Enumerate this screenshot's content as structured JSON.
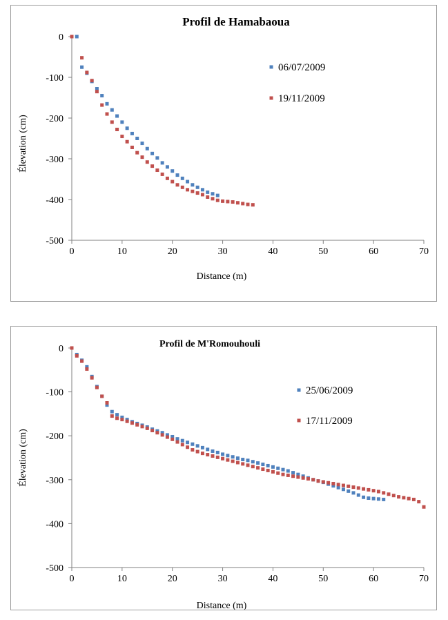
{
  "chart_data": [
    {
      "type": "scatter",
      "title": "Profil de Hamabaoua",
      "xlabel": "Distance (m)",
      "ylabel": "Élevation (cm)",
      "xlim": [
        0,
        70
      ],
      "ylim": [
        -500,
        0
      ],
      "xticks": [
        "0",
        "10",
        "20",
        "30",
        "40",
        "50",
        "60",
        "70"
      ],
      "yticks": [
        "0",
        "-100",
        "-200",
        "-300",
        "-400",
        "-500"
      ],
      "grid": false,
      "legend_position": "right",
      "series": [
        {
          "name": "06/07/2009",
          "color": "#4f81bd",
          "x": [
            1,
            2,
            3,
            4,
            5,
            6,
            7,
            8,
            9,
            10,
            11,
            12,
            13,
            14,
            15,
            16,
            17,
            18,
            19,
            20,
            21,
            22,
            23,
            24,
            25,
            26,
            27,
            28,
            29
          ],
          "y": [
            0,
            -75,
            -90,
            -110,
            -128,
            -145,
            -165,
            -180,
            -195,
            -210,
            -225,
            -238,
            -250,
            -262,
            -275,
            -287,
            -298,
            -310,
            -320,
            -330,
            -340,
            -348,
            -356,
            -364,
            -370,
            -376,
            -382,
            -386,
            -390
          ]
        },
        {
          "name": "19/11/2009",
          "color": "#c0504d",
          "x": [
            0,
            2,
            3,
            4,
            5,
            6,
            7,
            8,
            9,
            10,
            11,
            12,
            13,
            14,
            15,
            16,
            17,
            18,
            19,
            20,
            21,
            22,
            23,
            24,
            25,
            26,
            27,
            28,
            29,
            30,
            31,
            32,
            33,
            34,
            35,
            36
          ],
          "y": [
            0,
            -52,
            -88,
            -108,
            -135,
            -168,
            -190,
            -210,
            -228,
            -245,
            -258,
            -272,
            -285,
            -296,
            -308,
            -318,
            -328,
            -338,
            -348,
            -356,
            -364,
            -370,
            -376,
            -380,
            -384,
            -388,
            -394,
            -398,
            -402,
            -404,
            -405,
            -406,
            -408,
            -410,
            -412,
            -413
          ]
        }
      ]
    },
    {
      "type": "scatter",
      "title": "Profil de M'Romouhouli",
      "xlabel": "Distance (m)",
      "ylabel": "Élevation (cm)",
      "xlim": [
        0,
        70
      ],
      "ylim": [
        -500,
        0
      ],
      "xticks": [
        "0",
        "10",
        "20",
        "30",
        "40",
        "50",
        "60",
        "70"
      ],
      "yticks": [
        "0",
        "-100",
        "-200",
        "-300",
        "-400",
        "-500"
      ],
      "grid": false,
      "legend_position": "right",
      "series": [
        {
          "name": "25/06/2009",
          "color": "#4f81bd",
          "x": [
            0,
            1,
            2,
            3,
            4,
            5,
            6,
            7,
            8,
            9,
            10,
            11,
            12,
            13,
            14,
            15,
            16,
            17,
            18,
            19,
            20,
            21,
            22,
            23,
            24,
            25,
            26,
            27,
            28,
            29,
            30,
            31,
            32,
            33,
            34,
            35,
            36,
            37,
            38,
            39,
            40,
            41,
            42,
            43,
            44,
            45,
            46,
            47,
            48,
            49,
            50,
            51,
            52,
            53,
            54,
            55,
            56,
            57,
            58,
            59,
            60,
            61,
            62
          ],
          "y": [
            0,
            -15,
            -28,
            -43,
            -65,
            -88,
            -110,
            -130,
            -145,
            -152,
            -158,
            -163,
            -168,
            -172,
            -176,
            -180,
            -185,
            -189,
            -193,
            -198,
            -202,
            -207,
            -211,
            -215,
            -219,
            -223,
            -227,
            -231,
            -235,
            -238,
            -242,
            -245,
            -248,
            -251,
            -254,
            -256,
            -259,
            -262,
            -265,
            -268,
            -271,
            -274,
            -277,
            -280,
            -284,
            -288,
            -292,
            -296,
            -300,
            -303,
            -306,
            -310,
            -314,
            -318,
            -322,
            -326,
            -330,
            -335,
            -340,
            -342,
            -343,
            -344,
            -345
          ]
        },
        {
          "name": "17/11/2009",
          "color": "#c0504d",
          "x": [
            0,
            1,
            2,
            3,
            4,
            5,
            6,
            7,
            8,
            9,
            10,
            11,
            12,
            13,
            14,
            15,
            16,
            17,
            18,
            19,
            20,
            21,
            22,
            23,
            24,
            25,
            26,
            27,
            28,
            29,
            30,
            31,
            32,
            33,
            34,
            35,
            36,
            37,
            38,
            39,
            40,
            41,
            42,
            43,
            44,
            45,
            46,
            47,
            48,
            49,
            50,
            51,
            52,
            53,
            54,
            55,
            56,
            57,
            58,
            59,
            60,
            61,
            62,
            63,
            64,
            65,
            66,
            67,
            68,
            69,
            70
          ],
          "y": [
            0,
            -18,
            -30,
            -48,
            -68,
            -90,
            -110,
            -125,
            -155,
            -160,
            -163,
            -167,
            -171,
            -175,
            -179,
            -183,
            -188,
            -193,
            -198,
            -203,
            -208,
            -214,
            -220,
            -226,
            -232,
            -236,
            -240,
            -243,
            -246,
            -249,
            -252,
            -255,
            -258,
            -261,
            -264,
            -267,
            -270,
            -273,
            -276,
            -279,
            -282,
            -285,
            -288,
            -290,
            -292,
            -294,
            -296,
            -298,
            -300,
            -303,
            -305,
            -307,
            -309,
            -311,
            -313,
            -315,
            -317,
            -319,
            -321,
            -323,
            -325,
            -327,
            -330,
            -333,
            -336,
            -339,
            -341,
            -343,
            -345,
            -350,
            -362
          ]
        }
      ]
    }
  ]
}
